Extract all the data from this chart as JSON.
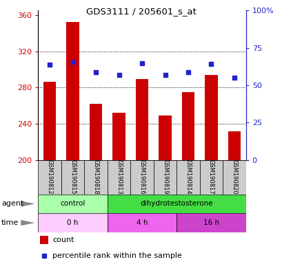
{
  "title": "GDS3111 / 205601_s_at",
  "samples": [
    "GSM190812",
    "GSM190815",
    "GSM190818",
    "GSM190813",
    "GSM190816",
    "GSM190819",
    "GSM190814",
    "GSM190817",
    "GSM190820"
  ],
  "bar_heights": [
    286,
    352,
    262,
    252,
    289,
    249,
    275,
    294,
    232
  ],
  "bar_base": 200,
  "percentile_values": [
    305,
    308,
    297,
    294,
    307,
    294,
    297,
    306,
    291
  ],
  "ylim_left": [
    200,
    365
  ],
  "ylim_right": [
    0,
    100
  ],
  "yticks_left": [
    200,
    240,
    280,
    320,
    360
  ],
  "yticks_right": [
    0,
    25,
    50,
    75,
    100
  ],
  "bar_color": "#cc0000",
  "dot_color": "#2222cc",
  "grid_color": "#000000",
  "agent_labels": [
    {
      "label": "control",
      "start": 0,
      "end": 3,
      "color": "#aaffaa"
    },
    {
      "label": "dihydrotestosterone",
      "start": 3,
      "end": 9,
      "color": "#44dd44"
    }
  ],
  "time_colors": [
    "#ffccff",
    "#ee66ee",
    "#cc44cc"
  ],
  "time_labels": [
    {
      "label": "0 h",
      "start": 0,
      "end": 3
    },
    {
      "label": "4 h",
      "start": 3,
      "end": 6
    },
    {
      "label": "16 h",
      "start": 6,
      "end": 9
    }
  ],
  "legend_count_color": "#cc0000",
  "legend_dot_color": "#2222cc",
  "tick_label_color_left": "#cc0000",
  "tick_label_color_right": "#2222cc",
  "sample_box_color": "#cccccc",
  "row_label_agent": "agent",
  "row_label_time": "time",
  "bar_width": 0.55,
  "arrow_color": "#888888"
}
